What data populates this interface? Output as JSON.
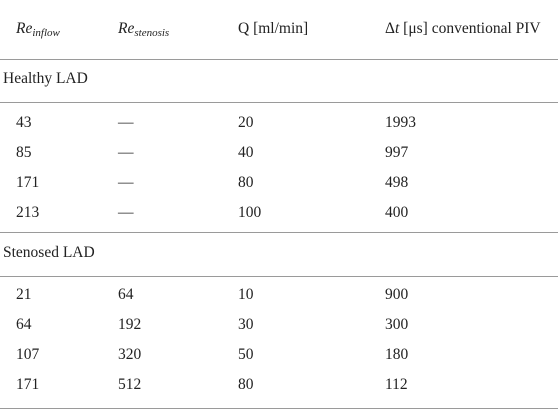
{
  "table": {
    "headers": {
      "re_inflow_base": "Re",
      "re_inflow_sub": "inflow",
      "re_stenosis_base": "Re",
      "re_stenosis_sub": "stenosis",
      "q": "Q [ml/min]",
      "dt_symbol": "Δ",
      "dt_var": "t",
      "dt_rest": " [μs] conventional PIV"
    },
    "groups": [
      {
        "label": "Healthy LAD",
        "rows": [
          [
            "43",
            "—",
            "20",
            "1993"
          ],
          [
            "85",
            "—",
            "40",
            "997"
          ],
          [
            "171",
            "—",
            "80",
            "498"
          ],
          [
            "213",
            "—",
            "100",
            "400"
          ]
        ]
      },
      {
        "label": "Stenosed LAD",
        "rows": [
          [
            "21",
            "64",
            "10",
            "900"
          ],
          [
            "64",
            "192",
            "30",
            "300"
          ],
          [
            "107",
            "320",
            "50",
            "180"
          ],
          [
            "171",
            "512",
            "80",
            "112"
          ]
        ]
      }
    ]
  }
}
